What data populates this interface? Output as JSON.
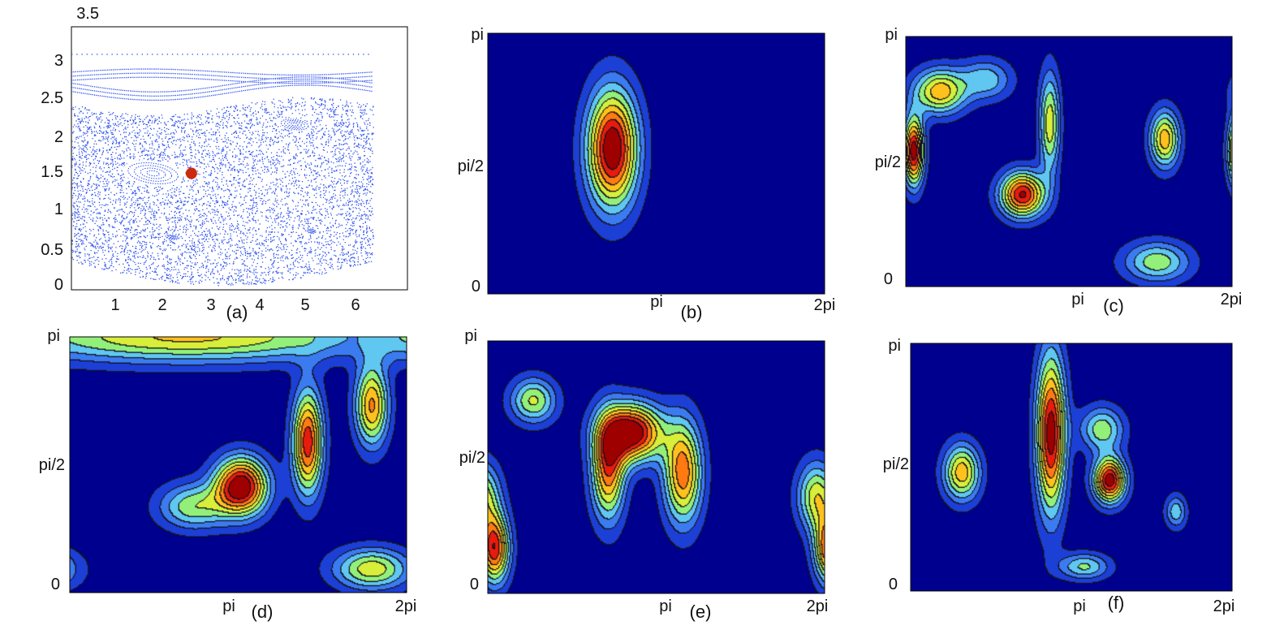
{
  "chart_data": [
    {
      "type": "scatter",
      "label": "(a)",
      "xticks": [
        "1",
        "2",
        "3",
        "4",
        "5",
        "6"
      ],
      "yticks": [
        "0",
        "0.5",
        "1",
        "1.5",
        "2",
        "2.5",
        "3",
        "3.5"
      ],
      "xlim": [
        0,
        7
      ],
      "ylim": [
        0,
        3.5
      ],
      "marker": {
        "x": 2.5,
        "y": 1.55
      },
      "colors": {
        "points": "#3355ee",
        "marker": "#cc2a10"
      }
    },
    {
      "type": "heatmap",
      "label": "(b)",
      "xticks": [
        "pi",
        "2pi"
      ],
      "yticks": [
        "0",
        "pi/2",
        "pi"
      ],
      "peaks": [
        {
          "x": 2.33,
          "y": 1.75,
          "amp": 1.0,
          "sx": 0.33,
          "sy": 0.5
        }
      ]
    },
    {
      "type": "heatmap",
      "label": "(c)",
      "xticks": [
        "pi",
        "2pi"
      ],
      "yticks": [
        "0",
        "pi/2",
        "pi"
      ],
      "peaks": [
        {
          "x": 0.15,
          "y": 1.7,
          "amp": 0.95,
          "sx": 0.14,
          "sy": 0.3
        },
        {
          "x": 0.65,
          "y": 2.45,
          "amp": 0.65,
          "sx": 0.35,
          "sy": 0.2
        },
        {
          "x": 2.25,
          "y": 1.15,
          "amp": 0.9,
          "sx": 0.3,
          "sy": 0.2
        },
        {
          "x": 2.78,
          "y": 2.05,
          "amp": 0.55,
          "sx": 0.14,
          "sy": 0.45
        },
        {
          "x": 1.55,
          "y": 2.6,
          "amp": 0.35,
          "sx": 0.35,
          "sy": 0.18
        },
        {
          "x": 5.0,
          "y": 1.85,
          "amp": 0.65,
          "sx": 0.2,
          "sy": 0.25
        },
        {
          "x": 4.85,
          "y": 0.3,
          "amp": 0.45,
          "sx": 0.45,
          "sy": 0.18
        }
      ]
    },
    {
      "type": "heatmap",
      "label": "(d)",
      "xticks": [
        "pi",
        "2pi"
      ],
      "yticks": [
        "0",
        "pi/2",
        "pi"
      ],
      "peaks": [
        {
          "x": 3.2,
          "y": 1.3,
          "amp": 1.0,
          "sx": 0.35,
          "sy": 0.25
        },
        {
          "x": 4.45,
          "y": 1.85,
          "amp": 0.85,
          "sx": 0.2,
          "sy": 0.45
        },
        {
          "x": 5.65,
          "y": 2.3,
          "amp": 0.7,
          "sx": 0.22,
          "sy": 0.35
        },
        {
          "x": 2.3,
          "y": 1.05,
          "amp": 0.45,
          "sx": 0.45,
          "sy": 0.2
        },
        {
          "x": 5.65,
          "y": 0.28,
          "amp": 0.55,
          "sx": 0.5,
          "sy": 0.18
        },
        {
          "x": 2.2,
          "y": 3.14,
          "amp": 0.6,
          "sx": 2.4,
          "sy": 0.22
        }
      ]
    },
    {
      "type": "heatmap",
      "label": "(e)",
      "xticks": [
        "pi",
        "2pi"
      ],
      "yticks": [
        "0",
        "pi/2",
        "pi"
      ],
      "peaks": [
        {
          "x": 2.7,
          "y": 2.0,
          "amp": 1.0,
          "sx": 0.4,
          "sy": 0.25
        },
        {
          "x": 2.25,
          "y": 1.55,
          "amp": 0.75,
          "sx": 0.22,
          "sy": 0.45
        },
        {
          "x": 3.65,
          "y": 1.5,
          "amp": 0.75,
          "sx": 0.25,
          "sy": 0.45
        },
        {
          "x": 0.12,
          "y": 0.55,
          "amp": 0.85,
          "sx": 0.2,
          "sy": 0.3
        },
        {
          "x": 0.85,
          "y": 2.4,
          "amp": 0.5,
          "sx": 0.3,
          "sy": 0.2
        },
        {
          "x": 6.15,
          "y": 1.2,
          "amp": 0.55,
          "sx": 0.25,
          "sy": 0.3
        }
      ]
    },
    {
      "type": "heatmap",
      "label": "(f)",
      "xticks": [
        "pi",
        "2pi"
      ],
      "yticks": [
        "0",
        "pi/2",
        "pi"
      ],
      "peaks": [
        {
          "x": 2.75,
          "y": 2.0,
          "amp": 0.95,
          "sx": 0.2,
          "sy": 0.7
        },
        {
          "x": 3.9,
          "y": 1.4,
          "amp": 0.95,
          "sx": 0.22,
          "sy": 0.2
        },
        {
          "x": 1.0,
          "y": 1.5,
          "amp": 0.65,
          "sx": 0.25,
          "sy": 0.25
        },
        {
          "x": 3.75,
          "y": 2.05,
          "amp": 0.45,
          "sx": 0.3,
          "sy": 0.2
        },
        {
          "x": 3.4,
          "y": 0.3,
          "amp": 0.4,
          "sx": 0.35,
          "sy": 0.12
        },
        {
          "x": 5.2,
          "y": 1.0,
          "amp": 0.35,
          "sx": 0.15,
          "sy": 0.15
        }
      ]
    }
  ],
  "colormap": [
    "#00008f",
    "#1c3fd6",
    "#3b7bf0",
    "#5fc7f0",
    "#92f07a",
    "#d7ee3a",
    "#ffc21c",
    "#ff7a10",
    "#e81b0c",
    "#9e0000"
  ]
}
